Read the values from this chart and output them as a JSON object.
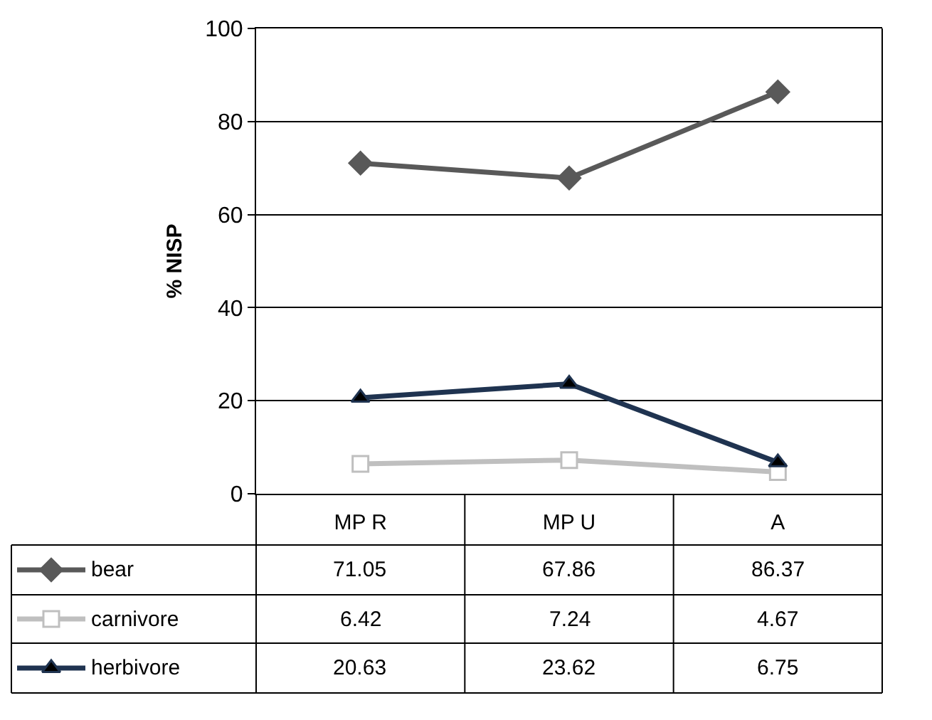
{
  "chart_data": {
    "type": "line",
    "ylabel": "% NISP",
    "categories": [
      "MP R",
      "MP U",
      "A"
    ],
    "series": [
      {
        "name": "bear",
        "color": "#595959",
        "marker": "diamond",
        "values": [
          71.05,
          67.86,
          86.37
        ]
      },
      {
        "name": "carnivore",
        "color": "#bfbfbf",
        "marker": "square",
        "values": [
          6.42,
          7.24,
          4.67
        ]
      },
      {
        "name": "herbivore",
        "color": "#1f3350",
        "marker": "triangle",
        "values": [
          20.63,
          23.62,
          6.75
        ]
      }
    ],
    "ylim": [
      0,
      100
    ],
    "yticks": [
      0,
      20,
      40,
      60,
      80,
      100
    ],
    "grid": "y",
    "legend": "bottom",
    "data_labels": true
  }
}
